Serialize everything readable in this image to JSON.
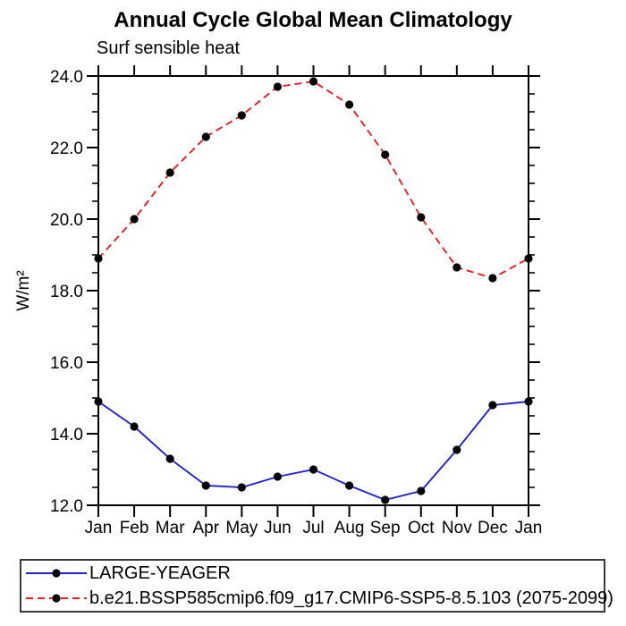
{
  "chart_data": {
    "type": "line",
    "title": "Annual Cycle Global Mean Climatology",
    "subtitle": "Surf sensible heat",
    "ylabel": "W/m²",
    "xlabel": "",
    "x_tick_labels": [
      "Jan",
      "Feb",
      "Mar",
      "Apr",
      "May",
      "Jun",
      "Jul",
      "Aug",
      "Sep",
      "Oct",
      "Nov",
      "Dec",
      "Jan"
    ],
    "ylim": [
      12.0,
      24.0
    ],
    "y_major_step": 2.0,
    "y_minor_step": 0.5,
    "y_tick_labels": [
      "12.0",
      "14.0",
      "16.0",
      "18.0",
      "20.0",
      "22.0",
      "24.0"
    ],
    "grid": false,
    "legend_position": "bottom-left-box",
    "marker": {
      "shape": "filled-circle",
      "color": "#000000",
      "radius_px": 4.6
    },
    "axis_color": "#000000",
    "series": [
      {
        "name": "LARGE-YEAGER",
        "color": "#2222cc",
        "style": "solid",
        "values": [
          14.9,
          14.2,
          13.3,
          12.55,
          12.5,
          12.8,
          13.0,
          12.55,
          12.15,
          12.4,
          13.55,
          14.8,
          14.9
        ]
      },
      {
        "name": "b.e21.BSSP585cmip6.f09_g17.CMIP6-SSP5-8.5.103 (2075-2099)",
        "color": "#e62020",
        "style": "dashed",
        "values": [
          18.9,
          20.0,
          21.3,
          22.3,
          22.9,
          23.7,
          23.85,
          23.2,
          21.8,
          20.05,
          18.65,
          18.35,
          18.9
        ]
      }
    ]
  }
}
